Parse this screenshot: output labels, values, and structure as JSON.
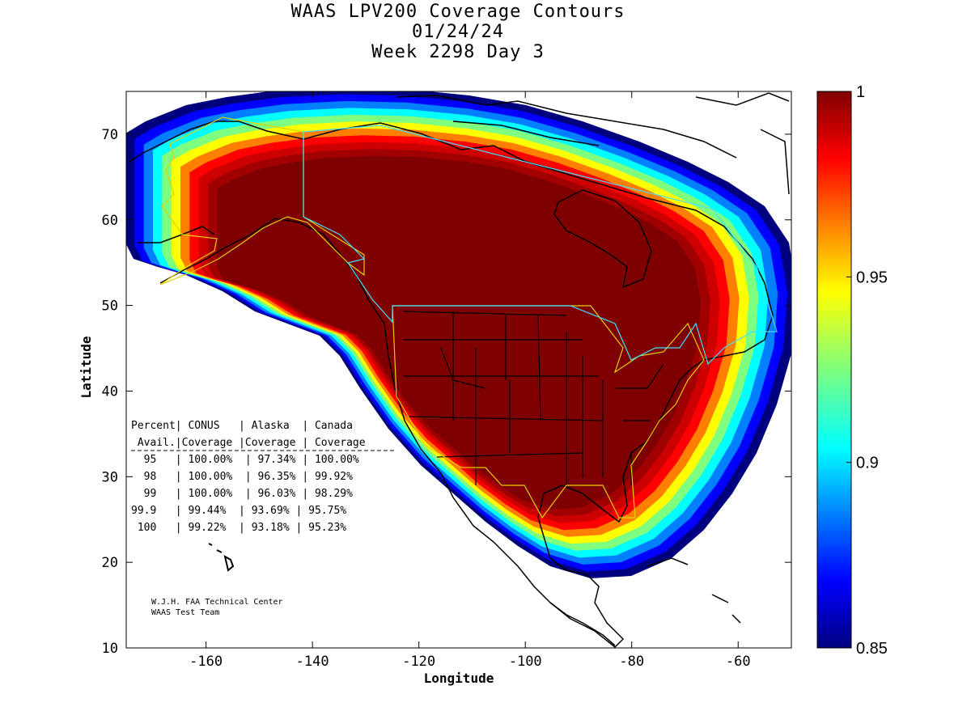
{
  "title_lines": [
    "WAAS LPV200 Coverage Contours",
    "01/24/24",
    "Week 2298 Day 3"
  ],
  "chart_data": {
    "type": "heatmap",
    "xlabel": "Longitude",
    "ylabel": "Latitude",
    "xlim": [
      -175,
      -50
    ],
    "ylim": [
      10,
      75
    ],
    "x_ticks": [
      -160,
      -140,
      -120,
      -100,
      -80,
      -60
    ],
    "y_ticks": [
      10,
      20,
      30,
      40,
      50,
      60,
      70
    ],
    "x_tick_labels": [
      "-160",
      "-140",
      "-120",
      "-100",
      "-80",
      "-60"
    ],
    "y_tick_labels": [
      "10",
      "20",
      "30",
      "40",
      "50",
      "60",
      "70"
    ],
    "colorbar": {
      "range": [
        0.85,
        1
      ],
      "tick_values": [
        0.85,
        0.9,
        0.95,
        1
      ],
      "tick_labels": [
        "0.85",
        "0.9",
        "0.95",
        "1"
      ],
      "colormap": "jet"
    },
    "contour_colors": [
      "#00007f",
      "#0000ff",
      "#007fff",
      "#00ffff",
      "#7fff7f",
      "#ffff00",
      "#ff7f00",
      "#ff0000",
      "#cc0000",
      "#a00000",
      "#7f0000"
    ],
    "grid": false
  },
  "table": {
    "header_rows": [
      "Percent| CONUS   | Alaska  | Canada",
      " Avail.|Coverage |Coverage | Coverage"
    ],
    "rows": [
      "  95   | 100.00%  | 97.34% | 100.00%",
      "  98   | 100.00%  | 96.35% | 99.92%",
      "  99   | 100.00%  | 96.03% | 98.29%",
      "99.9   | 99.44%  | 93.69% | 95.75%",
      " 100   | 99.22%  | 93.18% | 95.23%"
    ]
  },
  "credits": [
    "W.J.H. FAA Technical Center",
    "WAAS Test Team"
  ]
}
